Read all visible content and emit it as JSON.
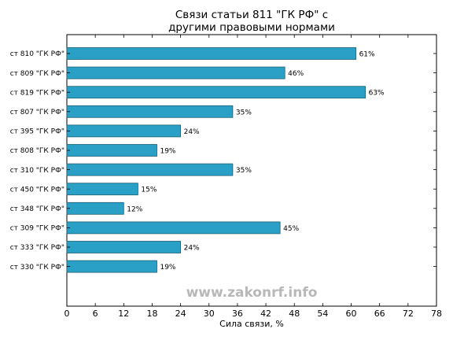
{
  "chart_data": {
    "type": "bar",
    "orientation": "horizontal",
    "title_lines": [
      "Связи статьи 811 \"ГК РФ\" с",
      "другими правовыми нормами"
    ],
    "xlabel": "Сила связи, %",
    "ylabel": "",
    "xlim": [
      0,
      78
    ],
    "xticks": [
      0,
      6,
      12,
      18,
      24,
      30,
      36,
      42,
      48,
      54,
      60,
      66,
      72,
      78
    ],
    "categories": [
      "ст 810 \"ГК РФ\"",
      "ст 809 \"ГК РФ\"",
      "ст 819 \"ГК РФ\"",
      "ст 807 \"ГК РФ\"",
      "ст 395 \"ГК РФ\"",
      "ст 808 \"ГК РФ\"",
      "ст 310 \"ГК РФ\"",
      "ст 450 \"ГК РФ\"",
      "ст 348 \"ГК РФ\"",
      "ст 309 \"ГК РФ\"",
      "ст 333 \"ГК РФ\"",
      "ст 330 \"ГК РФ\""
    ],
    "values": [
      61,
      46,
      63,
      35,
      24,
      19,
      35,
      15,
      12,
      45,
      24,
      19
    ],
    "value_labels": [
      "61%",
      "46%",
      "63%",
      "35%",
      "24%",
      "19%",
      "35%",
      "15%",
      "12%",
      "45%",
      "24%",
      "19%"
    ],
    "bar_color": "#2aa0c6",
    "grid": false,
    "legend": "none"
  },
  "watermark": "www.zakonrf.info"
}
